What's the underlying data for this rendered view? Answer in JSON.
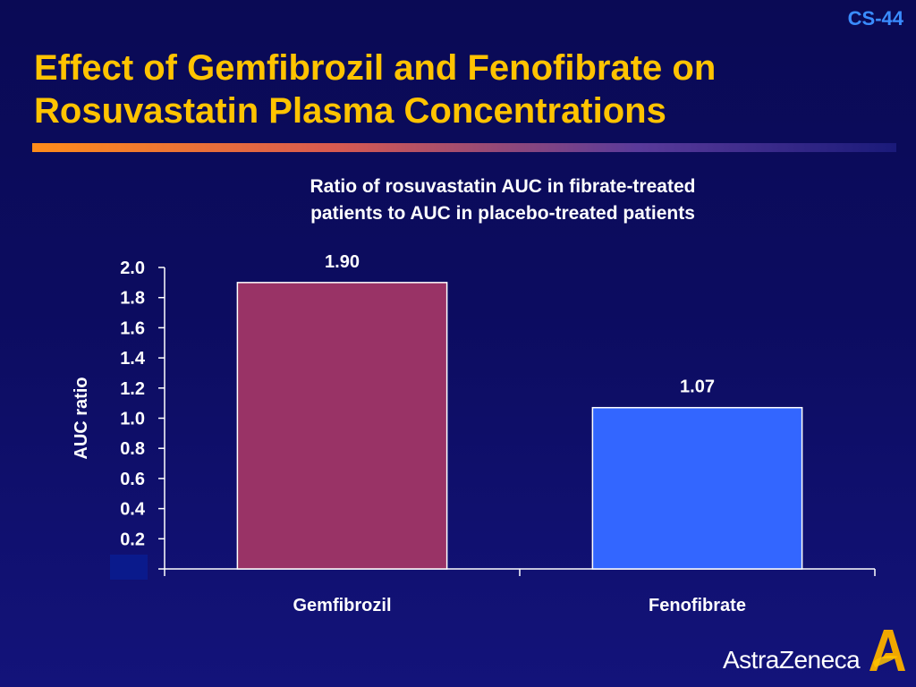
{
  "slide": {
    "number": "CS-44",
    "title_lines": [
      "Effect of Gemfibrozil and Fenofibrate on",
      "Rosuvastatin Plasma Concentrations"
    ]
  },
  "chart_data": {
    "type": "bar",
    "title_lines": [
      "Ratio of rosuvastatin AUC in fibrate-treated",
      "patients to AUC in placebo-treated patients"
    ],
    "ylabel": "AUC ratio",
    "xlabel": "",
    "categories": [
      "Gemfibrozil",
      "Fenofibrate"
    ],
    "values": [
      1.9,
      1.07
    ],
    "data_labels": [
      "1.90",
      "1.07"
    ],
    "bar_colors": [
      "#993366",
      "#3366ff"
    ],
    "ylim": [
      0,
      2.0
    ],
    "yticks": [
      0.2,
      0.4,
      0.6,
      0.8,
      1.0,
      1.2,
      1.4,
      1.6,
      1.8,
      2.0
    ],
    "ytick_labels": [
      "0.2",
      "0.4",
      "0.6",
      "0.8",
      "1.0",
      "1.2",
      "1.4",
      "1.6",
      "1.8",
      "2.0"
    ],
    "grid": false,
    "legend": "none"
  },
  "logo": {
    "text": "AstraZeneca",
    "icon": "astrazeneca-logo-icon"
  },
  "colors": {
    "title": "#ffc300",
    "slide_number": "#3a8cff",
    "background": "#0c0c60"
  }
}
